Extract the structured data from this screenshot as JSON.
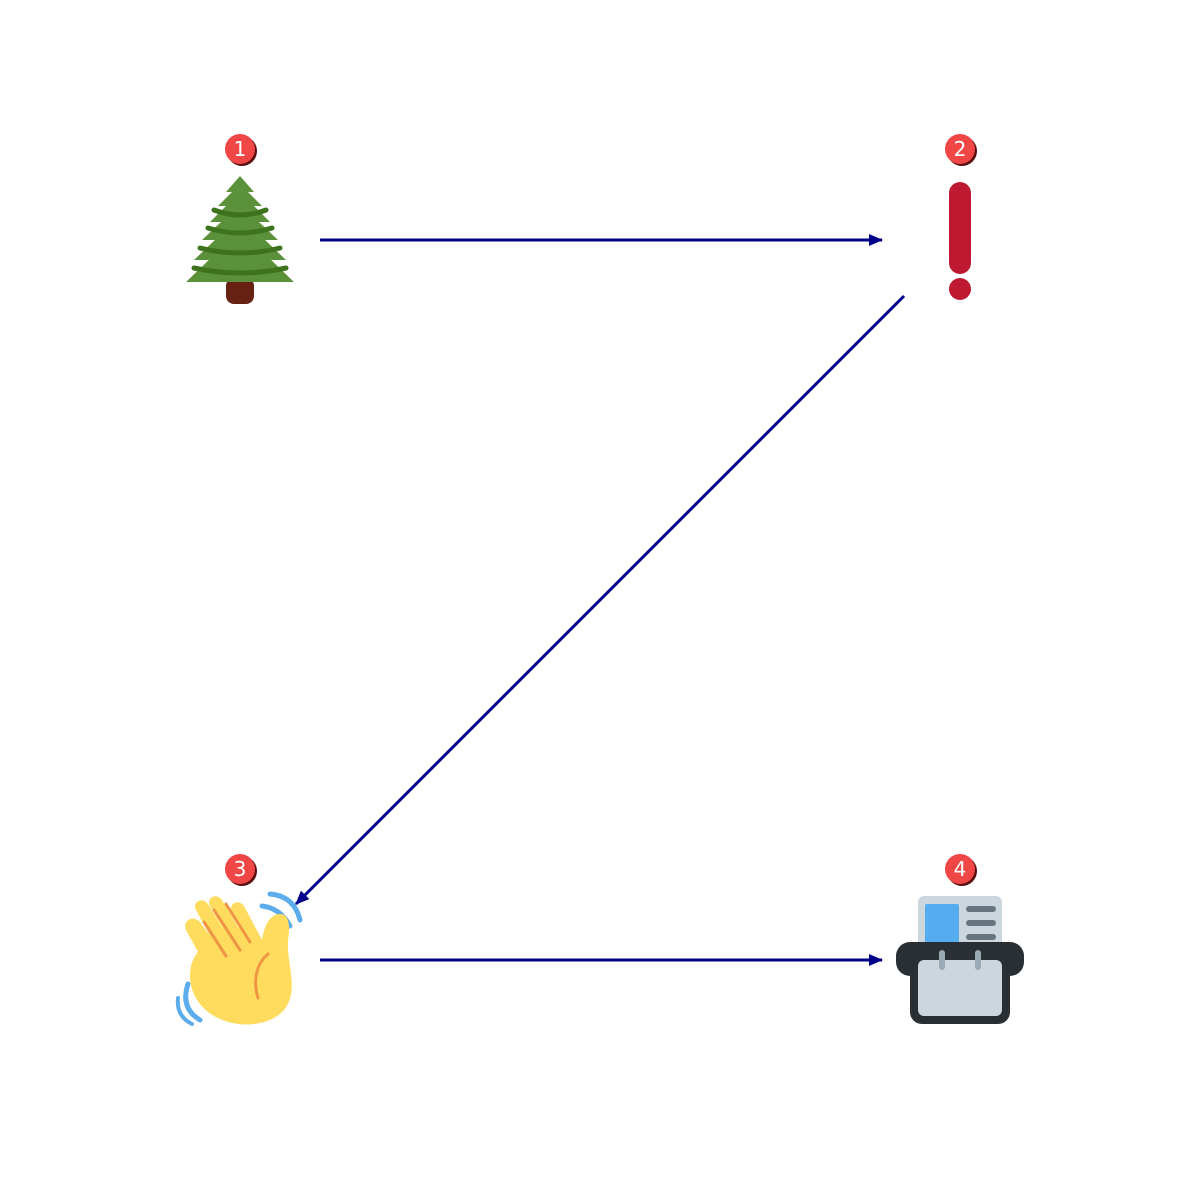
{
  "colors": {
    "arrow": "#00008b",
    "badge_fill": "#f04646",
    "badge_shadow": "#5a1010",
    "badge_text": "#ffffff"
  },
  "nodes": [
    {
      "id": "n1",
      "badge": "1",
      "icon": "evergreen-tree-icon"
    },
    {
      "id": "n2",
      "badge": "2",
      "icon": "exclamation-mark-icon"
    },
    {
      "id": "n3",
      "badge": "3",
      "icon": "waving-hand-icon"
    },
    {
      "id": "n4",
      "badge": "4",
      "icon": "card-index-icon"
    }
  ],
  "edges": [
    {
      "from": "1",
      "to": "2"
    },
    {
      "from": "2",
      "to": "3"
    },
    {
      "from": "3",
      "to": "4"
    }
  ]
}
